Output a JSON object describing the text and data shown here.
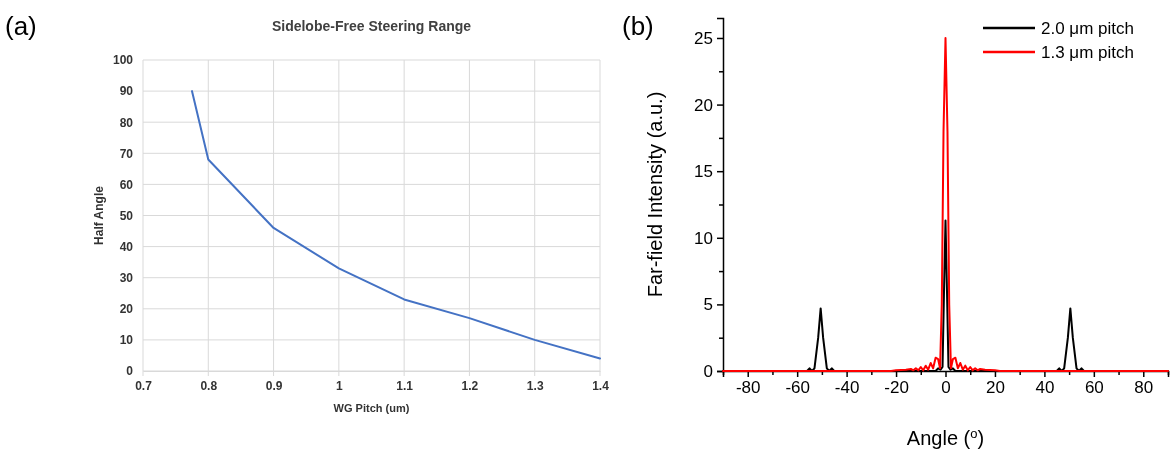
{
  "chart_data": [
    {
      "type": "line",
      "title": "Sidelobe-Free Steering Range",
      "xlabel": "WG Pitch (um)",
      "ylabel": "Half Angle",
      "annotations": [
        "(a)"
      ],
      "x": [
        0.775,
        0.8,
        0.9,
        1.0,
        1.1,
        1.2,
        1.3,
        1.4
      ],
      "series": [
        {
          "color": "#4472c4",
          "values": [
            90,
            68,
            46,
            33,
            23,
            17,
            10,
            4
          ]
        }
      ],
      "xlim": [
        0.7,
        1.4
      ],
      "xticks": [
        0.7,
        0.8,
        0.9,
        {
          "value": 1,
          "label": "1"
        },
        1.1,
        1.2,
        1.3,
        1.4
      ],
      "ylim": [
        0,
        100
      ],
      "yticks": [
        0,
        10,
        20,
        30,
        40,
        50,
        60,
        70,
        80,
        90,
        100
      ],
      "grid": true,
      "marker": "none",
      "line_style": "solid"
    },
    {
      "type": "line",
      "xlabel": "Angle ($^{o}$)",
      "ylabel": "Far-field Intensity (a.u.)",
      "annotations": [
        "(b)"
      ],
      "series": [
        {
          "name": "2.0 μm pitch",
          "color": "#000000",
          "x": [
            -90,
            -56,
            -55,
            -54,
            -53,
            -51.5,
            -50.5,
            -49.5,
            -48,
            -47,
            -46,
            -45,
            -4,
            -3,
            -2,
            -1.2,
            -0.6,
            0,
            0.6,
            1.2,
            2,
            3,
            4,
            45,
            46,
            47,
            48,
            49.5,
            50.5,
            51.5,
            53,
            54,
            55,
            56,
            90
          ],
          "values": [
            0,
            0,
            0.2,
            0,
            0.2,
            2.5,
            4.7,
            2.5,
            0.2,
            0,
            0.2,
            0,
            0,
            0.2,
            0.1,
            0.3,
            6,
            11.3,
            6,
            0.3,
            0.1,
            0.2,
            0,
            0,
            0.2,
            0,
            0.2,
            2.5,
            4.7,
            2.5,
            0.2,
            0,
            0.2,
            0,
            0
          ]
        },
        {
          "name": "1.3 μm pitch",
          "color": "#ff0000",
          "x": [
            -90,
            -22,
            -20,
            -18,
            -16,
            -14,
            -13,
            -12,
            -11,
            -10,
            -9,
            -8,
            -7,
            -6,
            -5,
            -4,
            -3,
            -2.2,
            -1.5,
            -0.8,
            0,
            0.8,
            1.5,
            2.2,
            3,
            4,
            5,
            6,
            7,
            8,
            9,
            10,
            11,
            12,
            13,
            14,
            16,
            18,
            20,
            22,
            90
          ],
          "values": [
            0,
            0,
            0.05,
            0.08,
            0.1,
            0.15,
            0.05,
            0.2,
            0.05,
            0.3,
            0.05,
            0.4,
            0.1,
            0.6,
            0.2,
            1,
            0.9,
            0.2,
            5,
            18,
            25,
            18,
            5,
            0.2,
            0.9,
            1,
            0.2,
            0.6,
            0.1,
            0.4,
            0.05,
            0.3,
            0.05,
            0.2,
            0.05,
            0.15,
            0.1,
            0.08,
            0.05,
            0,
            0
          ]
        }
      ],
      "xlim": [
        -90,
        90
      ],
      "xticks": [
        {
          "value": -90,
          "label": null
        },
        -80,
        {
          "value": -70,
          "label": null
        },
        -60,
        {
          "value": -50,
          "label": null
        },
        -40,
        {
          "value": -30,
          "label": null
        },
        -20,
        {
          "value": -10,
          "label": null
        },
        0,
        {
          "value": 10,
          "label": null
        },
        20,
        {
          "value": 30,
          "label": null
        },
        40,
        {
          "value": 50,
          "label": null
        },
        60,
        {
          "value": 70,
          "label": null
        },
        80,
        {
          "value": 90,
          "label": null
        }
      ],
      "ylim": [
        0,
        26.5
      ],
      "yticks": [
        0,
        {
          "value": 2.5,
          "label": null
        },
        5,
        {
          "value": 7.5,
          "label": null
        },
        10,
        {
          "value": 12.5,
          "label": null
        },
        15,
        {
          "value": 17.5,
          "label": null
        },
        20,
        {
          "value": 22.5,
          "label": null
        },
        25
      ],
      "legend": "top right",
      "marker": "none",
      "line_style": "solid"
    }
  ]
}
